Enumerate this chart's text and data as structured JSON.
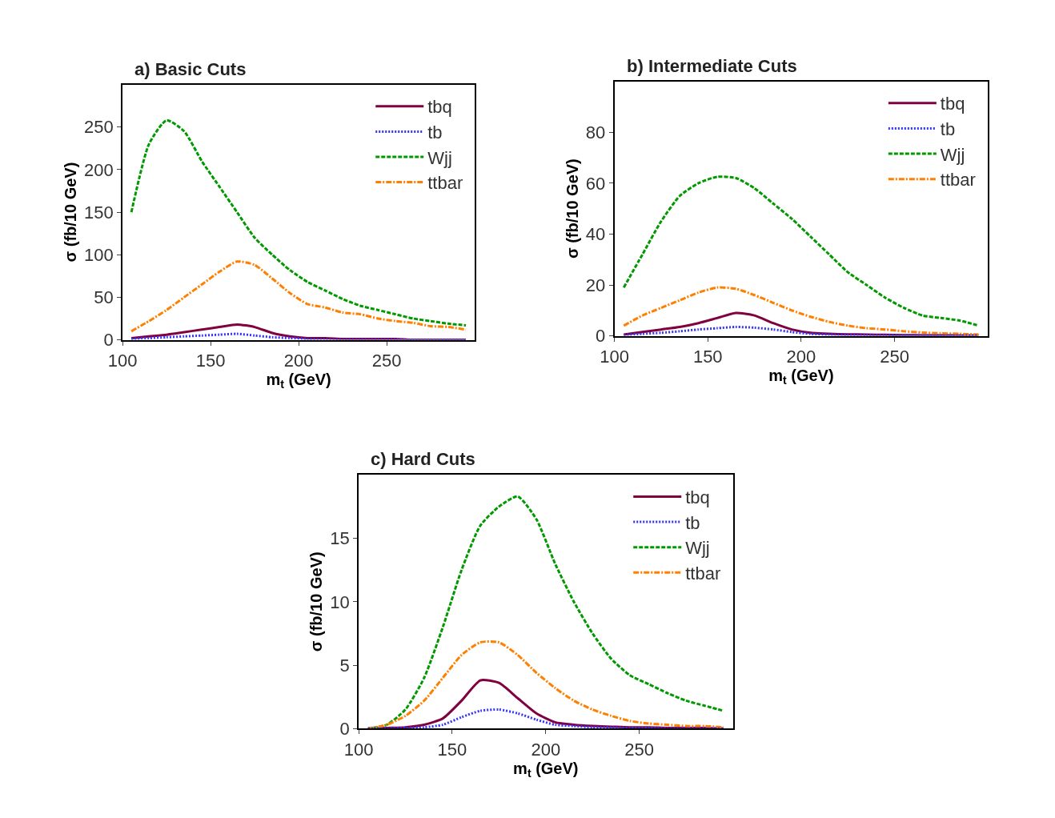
{
  "chart_data": [
    {
      "type": "line",
      "title": "a) Basic Cuts",
      "xlabel": "m$_{t}$ (GeV)",
      "ylabel": "σ (fb/10 GeV)",
      "x": [
        105,
        115,
        125,
        135,
        145,
        155,
        165,
        175,
        185,
        195,
        205,
        215,
        225,
        235,
        245,
        255,
        265,
        275,
        285,
        295
      ],
      "xlim": [
        100,
        300
      ],
      "xticks": [
        100,
        150,
        200,
        250
      ],
      "ylim": [
        0,
        300
      ],
      "yticks": [
        0,
        50,
        100,
        150,
        200,
        250
      ],
      "grid": false,
      "legend": "top right",
      "series": [
        {
          "name": "tbq",
          "color": "#800040",
          "line_style": "solid",
          "values": [
            2,
            4,
            6,
            9,
            12,
            15,
            18,
            15,
            8,
            4,
            2,
            2,
            1,
            1,
            1,
            1,
            0,
            0,
            0,
            0
          ]
        },
        {
          "name": "tb",
          "color": "#3333ff",
          "line_style": "dotted",
          "values": [
            1,
            2,
            3,
            4,
            5,
            6,
            7,
            5,
            3,
            2,
            1,
            0,
            0,
            0,
            0,
            0,
            0,
            0,
            0,
            0
          ]
        },
        {
          "name": "Wjj",
          "color": "#009900",
          "line_style": "dashed",
          "values": [
            150,
            230,
            258,
            245,
            210,
            180,
            150,
            120,
            100,
            82,
            68,
            58,
            48,
            40,
            35,
            30,
            25,
            22,
            19,
            17
          ]
        },
        {
          "name": "ttbar",
          "color": "#ff8000",
          "line_style": "dashdot",
          "values": [
            10,
            22,
            35,
            50,
            65,
            80,
            92,
            88,
            72,
            55,
            42,
            38,
            32,
            30,
            25,
            22,
            20,
            16,
            15,
            12
          ]
        }
      ]
    },
    {
      "type": "line",
      "title": "b) Intermediate Cuts",
      "xlabel": "m$_{t}$ (GeV)",
      "ylabel": "σ (fb/10 GeV)",
      "x": [
        105,
        115,
        125,
        135,
        145,
        155,
        165,
        175,
        185,
        195,
        205,
        215,
        225,
        235,
        245,
        255,
        265,
        275,
        285,
        295
      ],
      "xlim": [
        100,
        300
      ],
      "xticks": [
        100,
        150,
        200,
        250
      ],
      "ylim": [
        0,
        100
      ],
      "yticks": [
        0,
        20,
        40,
        60,
        80
      ],
      "grid": false,
      "legend": "top right",
      "series": [
        {
          "name": "tbq",
          "color": "#800040",
          "line_style": "solid",
          "values": [
            0.5,
            1.5,
            2.5,
            3.5,
            5,
            7,
            9,
            8,
            5,
            2.5,
            1.2,
            0.8,
            0.6,
            0.5,
            0.4,
            0.3,
            0.2,
            0.2,
            0.1,
            0.1
          ]
        },
        {
          "name": "tb",
          "color": "#3333ff",
          "line_style": "dotted",
          "values": [
            0.3,
            0.8,
            1.2,
            1.8,
            2.5,
            3,
            3.5,
            3.2,
            2.5,
            1.5,
            0.8,
            0.5,
            0.4,
            0.3,
            0.3,
            0.2,
            0.2,
            0.2,
            0.2,
            0.2
          ]
        },
        {
          "name": "Wjj",
          "color": "#009900",
          "line_style": "dashed",
          "values": [
            19,
            32,
            45,
            55,
            60,
            62.5,
            62,
            58,
            52,
            46,
            39,
            32,
            25,
            20,
            15,
            11,
            8,
            7,
            6,
            4
          ]
        },
        {
          "name": "ttbar",
          "color": "#ff8000",
          "line_style": "dashdot",
          "values": [
            4,
            8,
            11,
            14,
            17,
            19,
            18.5,
            16,
            13,
            10,
            7.5,
            5.5,
            4,
            3,
            2.5,
            1.8,
            1.3,
            1,
            0.8,
            0.5
          ]
        }
      ]
    },
    {
      "type": "line",
      "title": "c) Hard Cuts",
      "xlabel": "m$_{t}$ (GeV)",
      "ylabel": "σ (fb/10 GeV)",
      "x": [
        105,
        115,
        125,
        135,
        145,
        155,
        165,
        175,
        185,
        195,
        205,
        215,
        225,
        235,
        245,
        255,
        265,
        275,
        285,
        295
      ],
      "xlim": [
        100,
        300
      ],
      "xticks": [
        100,
        150,
        200,
        250
      ],
      "ylim": [
        0,
        20
      ],
      "yticks": [
        0,
        5,
        10,
        15
      ],
      "grid": false,
      "legend": "top right",
      "series": [
        {
          "name": "tbq",
          "color": "#800040",
          "line_style": "solid",
          "values": [
            0,
            0.05,
            0.1,
            0.3,
            0.8,
            2.2,
            3.8,
            3.6,
            2.4,
            1.2,
            0.5,
            0.3,
            0.2,
            0.15,
            0.1,
            0.1,
            0.05,
            0.05,
            0.05,
            0
          ]
        },
        {
          "name": "tb",
          "color": "#3333ff",
          "line_style": "dotted",
          "values": [
            0,
            0,
            0.05,
            0.1,
            0.3,
            0.9,
            1.4,
            1.5,
            1.2,
            0.7,
            0.3,
            0.2,
            0.1,
            0.1,
            0.05,
            0.05,
            0,
            0,
            0,
            0
          ]
        },
        {
          "name": "Wjj",
          "color": "#009900",
          "line_style": "dashed",
          "values": [
            0,
            0.3,
            1.5,
            4,
            8,
            12.5,
            16,
            17.5,
            18.3,
            16.5,
            13,
            10,
            7.5,
            5.5,
            4.2,
            3.5,
            2.8,
            2.2,
            1.8,
            1.4
          ]
        },
        {
          "name": "ttbar",
          "color": "#ff8000",
          "line_style": "dashdot",
          "values": [
            0,
            0.3,
            1,
            2.2,
            4,
            5.8,
            6.8,
            6.8,
            5.8,
            4.4,
            3.2,
            2.2,
            1.5,
            1,
            0.6,
            0.4,
            0.3,
            0.2,
            0.2,
            0.1
          ]
        }
      ]
    }
  ]
}
